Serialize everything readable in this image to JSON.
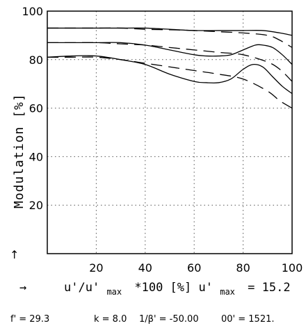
{
  "chart_data": {
    "type": "line",
    "title": "",
    "ylabel": "Modulation [%]",
    "xlabel": {
      "arrow": "→",
      "prefix": "u'/u'",
      "prefix_sub": "max",
      "middle": "*100 [%] u'",
      "middle_sub": "max",
      "suffix": "= 15.2"
    },
    "y_arrow": "↑",
    "xlim": [
      0,
      100
    ],
    "ylim": [
      0,
      100
    ],
    "x_ticks": [
      20,
      40,
      60,
      80,
      100
    ],
    "y_ticks": [
      20,
      40,
      60,
      80,
      100
    ],
    "grid": true,
    "series": [
      {
        "style": "solid",
        "x": [
          0,
          10,
          20,
          30,
          40,
          50,
          60,
          70,
          80,
          88,
          95,
          100
        ],
        "y": [
          93,
          93,
          93,
          93,
          93,
          92.5,
          92,
          92,
          92,
          92,
          91,
          90
        ]
      },
      {
        "style": "dashed",
        "x": [
          0,
          10,
          20,
          30,
          40,
          50,
          60,
          70,
          80,
          90,
          95,
          100
        ],
        "y": [
          93,
          93,
          93,
          93,
          92.5,
          92.3,
          92,
          91.5,
          91,
          90,
          88,
          85
        ]
      },
      {
        "style": "solid",
        "x": [
          0,
          10,
          20,
          30,
          40,
          50,
          60,
          65,
          70,
          75,
          80,
          85,
          88,
          92,
          96,
          100
        ],
        "y": [
          87,
          87,
          87,
          87,
          86,
          84,
          82,
          81.5,
          81.5,
          82,
          84,
          86,
          86,
          85,
          82,
          78
        ]
      },
      {
        "style": "dashed",
        "x": [
          0,
          10,
          20,
          30,
          40,
          50,
          60,
          70,
          80,
          90,
          95,
          100
        ],
        "y": [
          87,
          87,
          87,
          86.5,
          86,
          85,
          84,
          83,
          82,
          79,
          76,
          71
        ]
      },
      {
        "style": "solid",
        "x": [
          0,
          10,
          20,
          30,
          40,
          50,
          60,
          65,
          70,
          75,
          80,
          84,
          88,
          92,
          96,
          100
        ],
        "y": [
          81,
          81.5,
          81.5,
          80,
          78,
          74,
          71,
          70.5,
          70.5,
          72,
          76,
          78,
          77,
          73,
          69,
          66
        ]
      },
      {
        "style": "dashed",
        "x": [
          0,
          10,
          20,
          30,
          40,
          50,
          60,
          70,
          80,
          90,
          95,
          100
        ],
        "y": [
          81,
          81,
          81,
          80,
          78.5,
          77,
          75.5,
          74,
          72,
          67,
          63,
          60
        ]
      }
    ]
  },
  "footer": {
    "f": "f' = 29.3",
    "k": "k = 8.0",
    "beta": "1/β' = -50.00",
    "oo": "00' = 1521."
  }
}
